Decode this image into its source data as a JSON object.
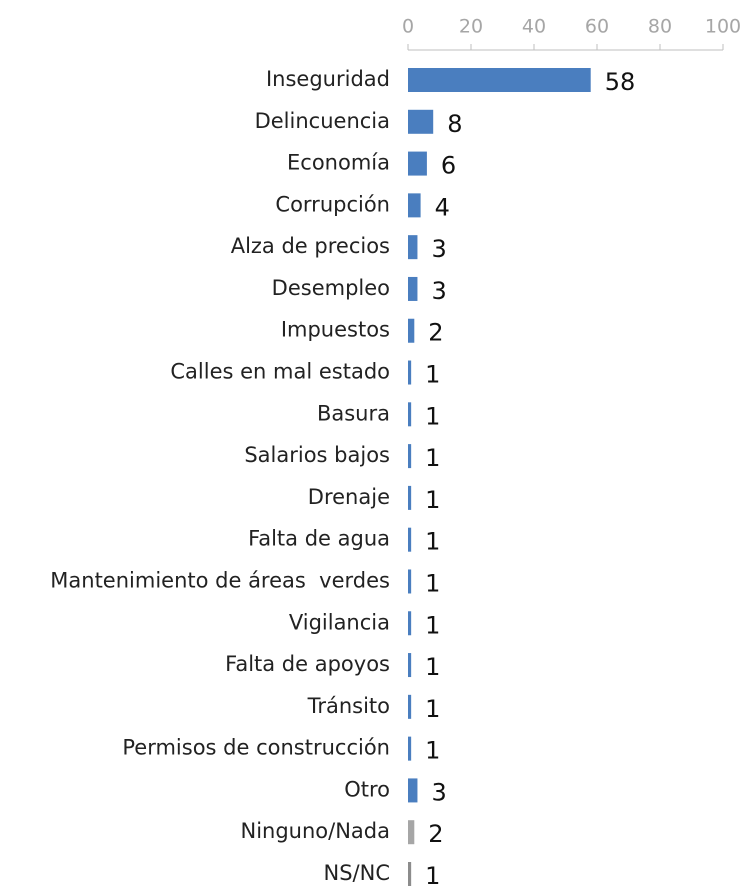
{
  "chart_data": {
    "type": "barh",
    "categories": [
      "Inseguridad",
      "Delincuencia",
      "Economía",
      "Corrupción",
      "Alza de precios",
      "Desempleo",
      "Impuestos",
      "Calles en mal estado",
      "Basura",
      "Salarios bajos",
      "Drenaje",
      "Falta de agua",
      "Mantenimiento de áreas  verdes",
      "Vigilancia",
      "Falta de apoyos",
      "Tránsito",
      "Permisos de construcción",
      "Otro",
      "Ninguno/Nada",
      "NS/NC"
    ],
    "values": [
      58,
      8,
      6,
      4,
      3,
      3,
      2,
      1,
      1,
      1,
      1,
      1,
      1,
      1,
      1,
      1,
      1,
      3,
      2,
      1
    ],
    "colors": [
      "#4a7ebf",
      "#4a7ebf",
      "#4a7ebf",
      "#4a7ebf",
      "#4a7ebf",
      "#4a7ebf",
      "#4a7ebf",
      "#4a7ebf",
      "#4a7ebf",
      "#4a7ebf",
      "#4a7ebf",
      "#4a7ebf",
      "#4a7ebf",
      "#4a7ebf",
      "#4a7ebf",
      "#4a7ebf",
      "#4a7ebf",
      "#4a7ebf",
      "#a6a6a6",
      "#8c8c8c"
    ],
    "xlim": [
      0,
      100
    ],
    "xticks": [
      0,
      20,
      40,
      60,
      80,
      100
    ],
    "axis_position": "top"
  }
}
